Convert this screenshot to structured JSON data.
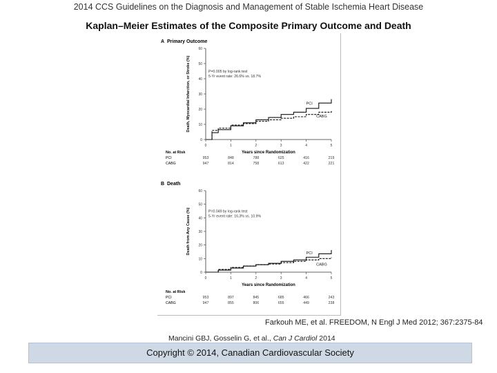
{
  "header": {
    "guideline_title": "2014 CCS Guidelines on the Diagnosis and Management of Stable Ischemia Heart Disease",
    "slide_title": "Kaplan–Meier Estimates of the Composite Primary Outcome and Death"
  },
  "chart_data": [
    {
      "type": "line",
      "panel": "A",
      "title": "Primary Outcome",
      "xlabel": "Years since Randomization",
      "ylabel": "Death, Myocardial Infarction, or Stroke (%)",
      "xlim": [
        0,
        5
      ],
      "ylim": [
        0,
        60
      ],
      "xticks": [
        0,
        1,
        2,
        3,
        4,
        5
      ],
      "yticks": [
        0,
        10,
        20,
        30,
        40,
        50,
        60
      ],
      "annotation_p": "P=0.005 by log-rank test",
      "annotation_rates": "5-Yr event rate: 26.6% vs. 18.7%",
      "series": [
        {
          "name": "PCI",
          "x": [
            0,
            0.25,
            0.5,
            1,
            1.5,
            2,
            2.5,
            3,
            3.5,
            4,
            4.5,
            5
          ],
          "y": [
            0,
            4.5,
            6.5,
            9,
            11,
            13,
            14.5,
            16.5,
            18,
            20.5,
            24,
            26.6
          ]
        },
        {
          "name": "CABG",
          "x": [
            0,
            0.25,
            0.5,
            1,
            1.5,
            2,
            2.5,
            3,
            3.5,
            4,
            4.5,
            5
          ],
          "y": [
            0,
            6,
            7.5,
            9.5,
            10.5,
            12,
            13,
            14,
            15,
            16.5,
            18,
            18.7
          ]
        }
      ],
      "at_risk": {
        "label": "No. at Risk",
        "rows": [
          {
            "group": "PCI",
            "values": [
              "953",
              "848",
              "788",
              "625",
              "416",
              "219"
            ]
          },
          {
            "group": "CABG",
            "values": [
              "947",
              "814",
              "758",
              "613",
              "422",
              "221"
            ]
          }
        ]
      }
    },
    {
      "type": "line",
      "panel": "B",
      "title": "Death",
      "xlabel": "Years since Randomization",
      "ylabel": "Death from Any Cause (%)",
      "xlim": [
        0,
        5
      ],
      "ylim": [
        0,
        60
      ],
      "xticks": [
        0,
        1,
        2,
        3,
        4,
        5
      ],
      "yticks": [
        0,
        10,
        20,
        30,
        40,
        50,
        60
      ],
      "annotation_p": "P=0.049 by log-rank test",
      "annotation_rates": "5-Yr event rate: 16.3% vs. 10.9%",
      "series": [
        {
          "name": "PCI",
          "x": [
            0,
            0.5,
            1,
            1.5,
            2,
            2.5,
            3,
            3.5,
            4,
            4.5,
            5
          ],
          "y": [
            0,
            1.5,
            3,
            4.5,
            5.5,
            6.5,
            8,
            9,
            11,
            13.5,
            16.3
          ]
        },
        {
          "name": "CABG",
          "x": [
            0,
            0.5,
            1,
            1.5,
            2,
            2.5,
            3,
            3.5,
            4,
            4.5,
            5
          ],
          "y": [
            0,
            2,
            3.5,
            4.5,
            5.5,
            6,
            7,
            8,
            9,
            10,
            10.9
          ]
        }
      ],
      "at_risk": {
        "label": "No. at Risk",
        "rows": [
          {
            "group": "PCI",
            "values": [
              "953",
              "897",
              "845",
              "685",
              "466",
              "243"
            ]
          },
          {
            "group": "CABG",
            "values": [
              "947",
              "855",
              "806",
              "655",
              "449",
              "238"
            ]
          }
        ]
      }
    }
  ],
  "citation": "Farkouh ME, et al. FREEDOM, N Engl J Med 2012; 367:2375-84",
  "source": {
    "prefix": "Mancini GBJ, Gosselin G, et al., ",
    "journal": "Can J Cardiol",
    "year": " 2014"
  },
  "footer": {
    "copyright": "Copyright © 2014, Canadian Cardiovascular Society"
  },
  "colors": {
    "footer_bg": "#cfd9e6",
    "line": "#111111"
  }
}
